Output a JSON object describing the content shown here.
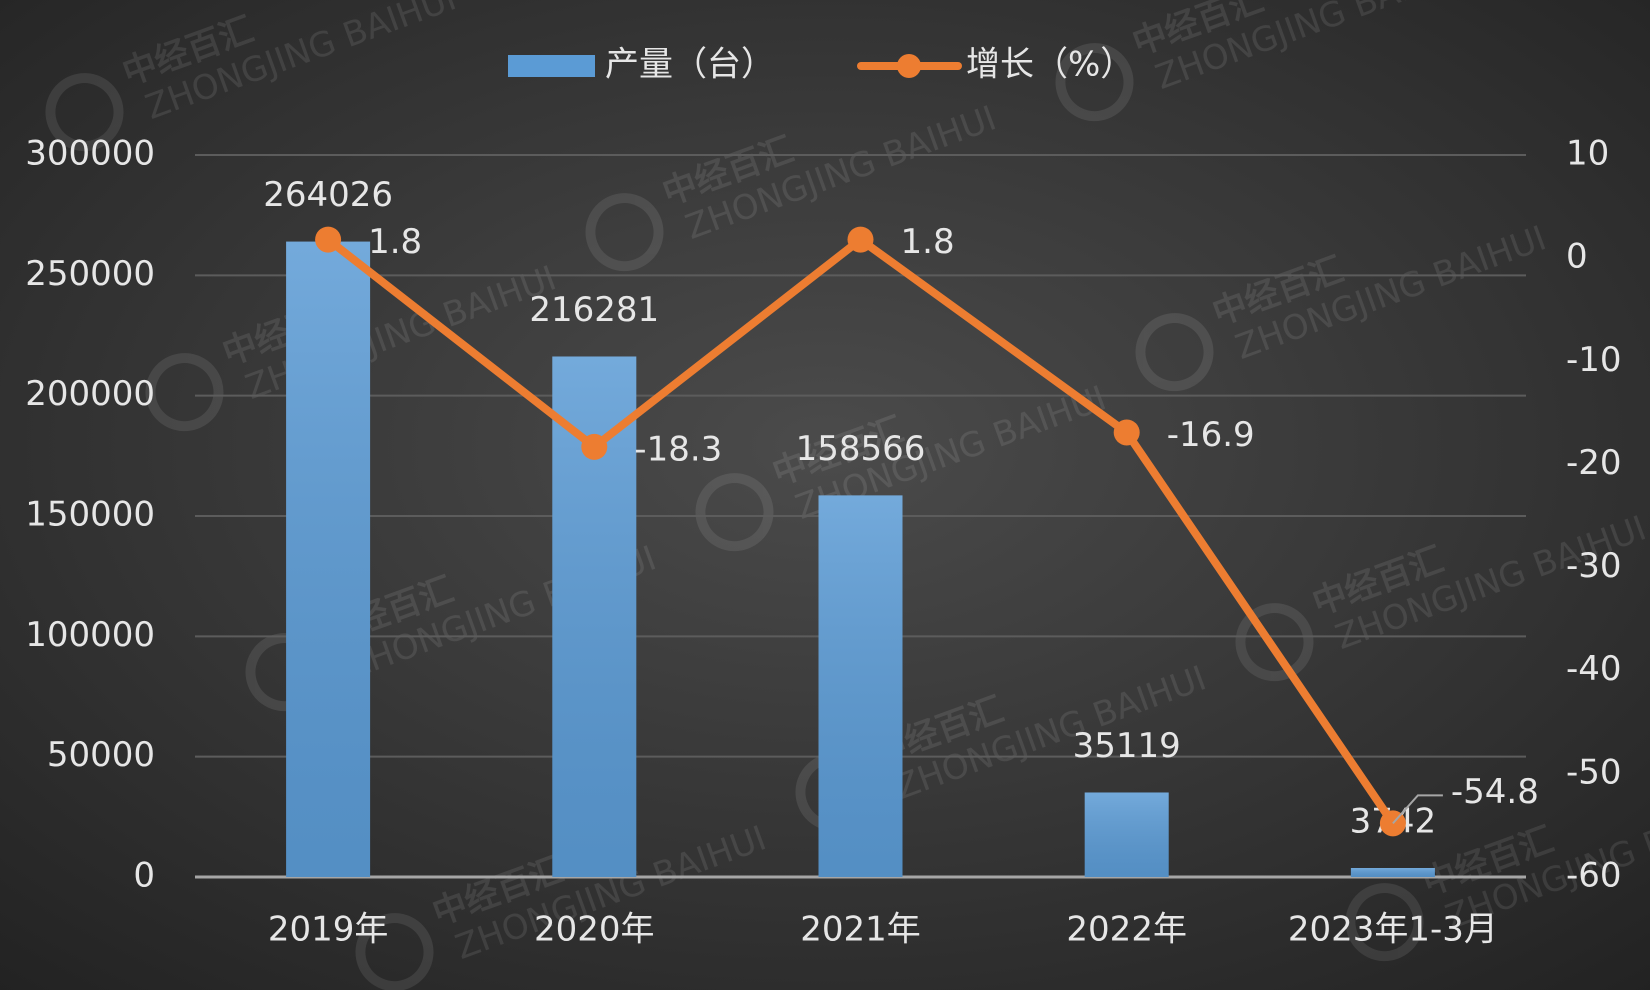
{
  "chart_data": {
    "type": "bar",
    "categories": [
      "2019年",
      "2020年",
      "2021年",
      "2022年",
      "2023年1-3月"
    ],
    "series": [
      {
        "name": "产量（台）",
        "type": "bar",
        "color": "#5b9bd5",
        "values": [
          264026,
          216281,
          158566,
          35119,
          3742
        ]
      },
      {
        "name": "增长（%）",
        "type": "line",
        "color": "#ed7d31",
        "axis": "y2",
        "values": [
          1.8,
          -18.3,
          1.8,
          -16.9,
          -54.8
        ]
      }
    ],
    "ylim": [
      0,
      300000
    ],
    "yticks": [
      0,
      50000,
      100000,
      150000,
      200000,
      250000,
      300000
    ],
    "y2lim": [
      -60,
      10
    ],
    "y2ticks": [
      -60,
      -50,
      -40,
      -30,
      -20,
      -10,
      0,
      10
    ],
    "grid": true,
    "legend": "top"
  },
  "watermark": {
    "name": "中经百汇",
    "subtitle": "ZHONGJING BAIHUI"
  }
}
